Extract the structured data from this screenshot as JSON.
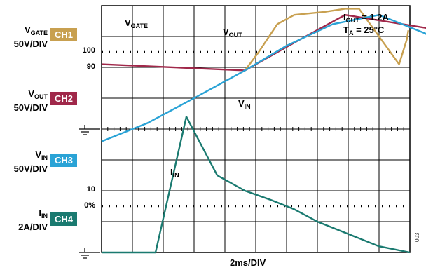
{
  "channels": [
    {
      "main": "V",
      "sub": "GATE",
      "scale": "50V/DIV",
      "badge": "CH1",
      "color": "#c8a050"
    },
    {
      "main": "V",
      "sub": "OUT",
      "scale": "50V/DIV",
      "badge": "CH2",
      "color": "#a0284a"
    },
    {
      "main": "V",
      "sub": "IN",
      "scale": "50V/DIV",
      "badge": "CH3",
      "color": "#2aa3d6"
    },
    {
      "main": "I",
      "sub": "IN",
      "scale": "2A/DIV",
      "badge": "CH4",
      "color": "#1a7a70"
    }
  ],
  "y_ticks": {
    "t100": "100",
    "t90": "90",
    "t10": "10",
    "t0": "0%"
  },
  "annotations": {
    "vgate": {
      "main": "V",
      "sub": "GATE"
    },
    "vout": {
      "main": "V",
      "sub": "OUT"
    },
    "vin": {
      "main": "V",
      "sub": "IN"
    },
    "iin": {
      "main": "I",
      "sub": "IN"
    }
  },
  "conditions": {
    "iout": {
      "main": "I",
      "sub": "OUT",
      "rest": " = 1.2A"
    },
    "ta": {
      "main": "T",
      "sub": "A",
      "rest": " = 25°C"
    }
  },
  "xlabel": "2ms/DIV",
  "figure_code": "003",
  "chart_data": {
    "type": "line",
    "xlabel": "2ms/DIV",
    "x_divisions": 10,
    "y_divisions": 8,
    "x_range_ms": [
      0,
      20
    ],
    "grid": true,
    "series": [
      {
        "name": "VGATE",
        "color": "#c8a050",
        "x": [
          9.3,
          10.2,
          11.4,
          12.5,
          14.5,
          15.8,
          16.7,
          19.3,
          19.8,
          19.9
        ],
        "y": [
          5.9,
          6.5,
          7.4,
          7.7,
          7.8,
          7.9,
          7.9,
          6.1,
          6.9,
          7.2
        ]
      },
      {
        "name": "VOUT",
        "color": "#a0284a",
        "x": [
          0,
          9.3,
          12.5,
          15.8,
          22,
          28,
          34,
          38,
          39,
          40
        ],
        "y": [
          6.1,
          5.9,
          6.8,
          7.7,
          7.2,
          6.7,
          6.2,
          5.9,
          6.3,
          6.8
        ]
      },
      {
        "name": "VIN",
        "color": "#2aa3d6",
        "x": [
          0,
          3,
          6,
          9.3,
          12,
          15,
          18,
          21,
          24,
          27,
          30,
          33,
          35,
          37,
          39.5,
          40
        ],
        "y": [
          3.6,
          4.2,
          5.0,
          5.9,
          6.7,
          7.4,
          7.7,
          7.1,
          5.9,
          4.4,
          3.0,
          1.8,
          1.0,
          0.6,
          0.4,
          0.5
        ]
      },
      {
        "name": "IIN",
        "color": "#1a7a70",
        "x": [
          0,
          3.5,
          5.5,
          7.5,
          9.3,
          11.0,
          12.5,
          14.0,
          16.0,
          18.0,
          20.0
        ],
        "y": [
          0.0,
          0.0,
          4.4,
          2.5,
          2.0,
          1.7,
          1.4,
          1.0,
          0.6,
          0.2,
          0.0
        ]
      }
    ]
  }
}
